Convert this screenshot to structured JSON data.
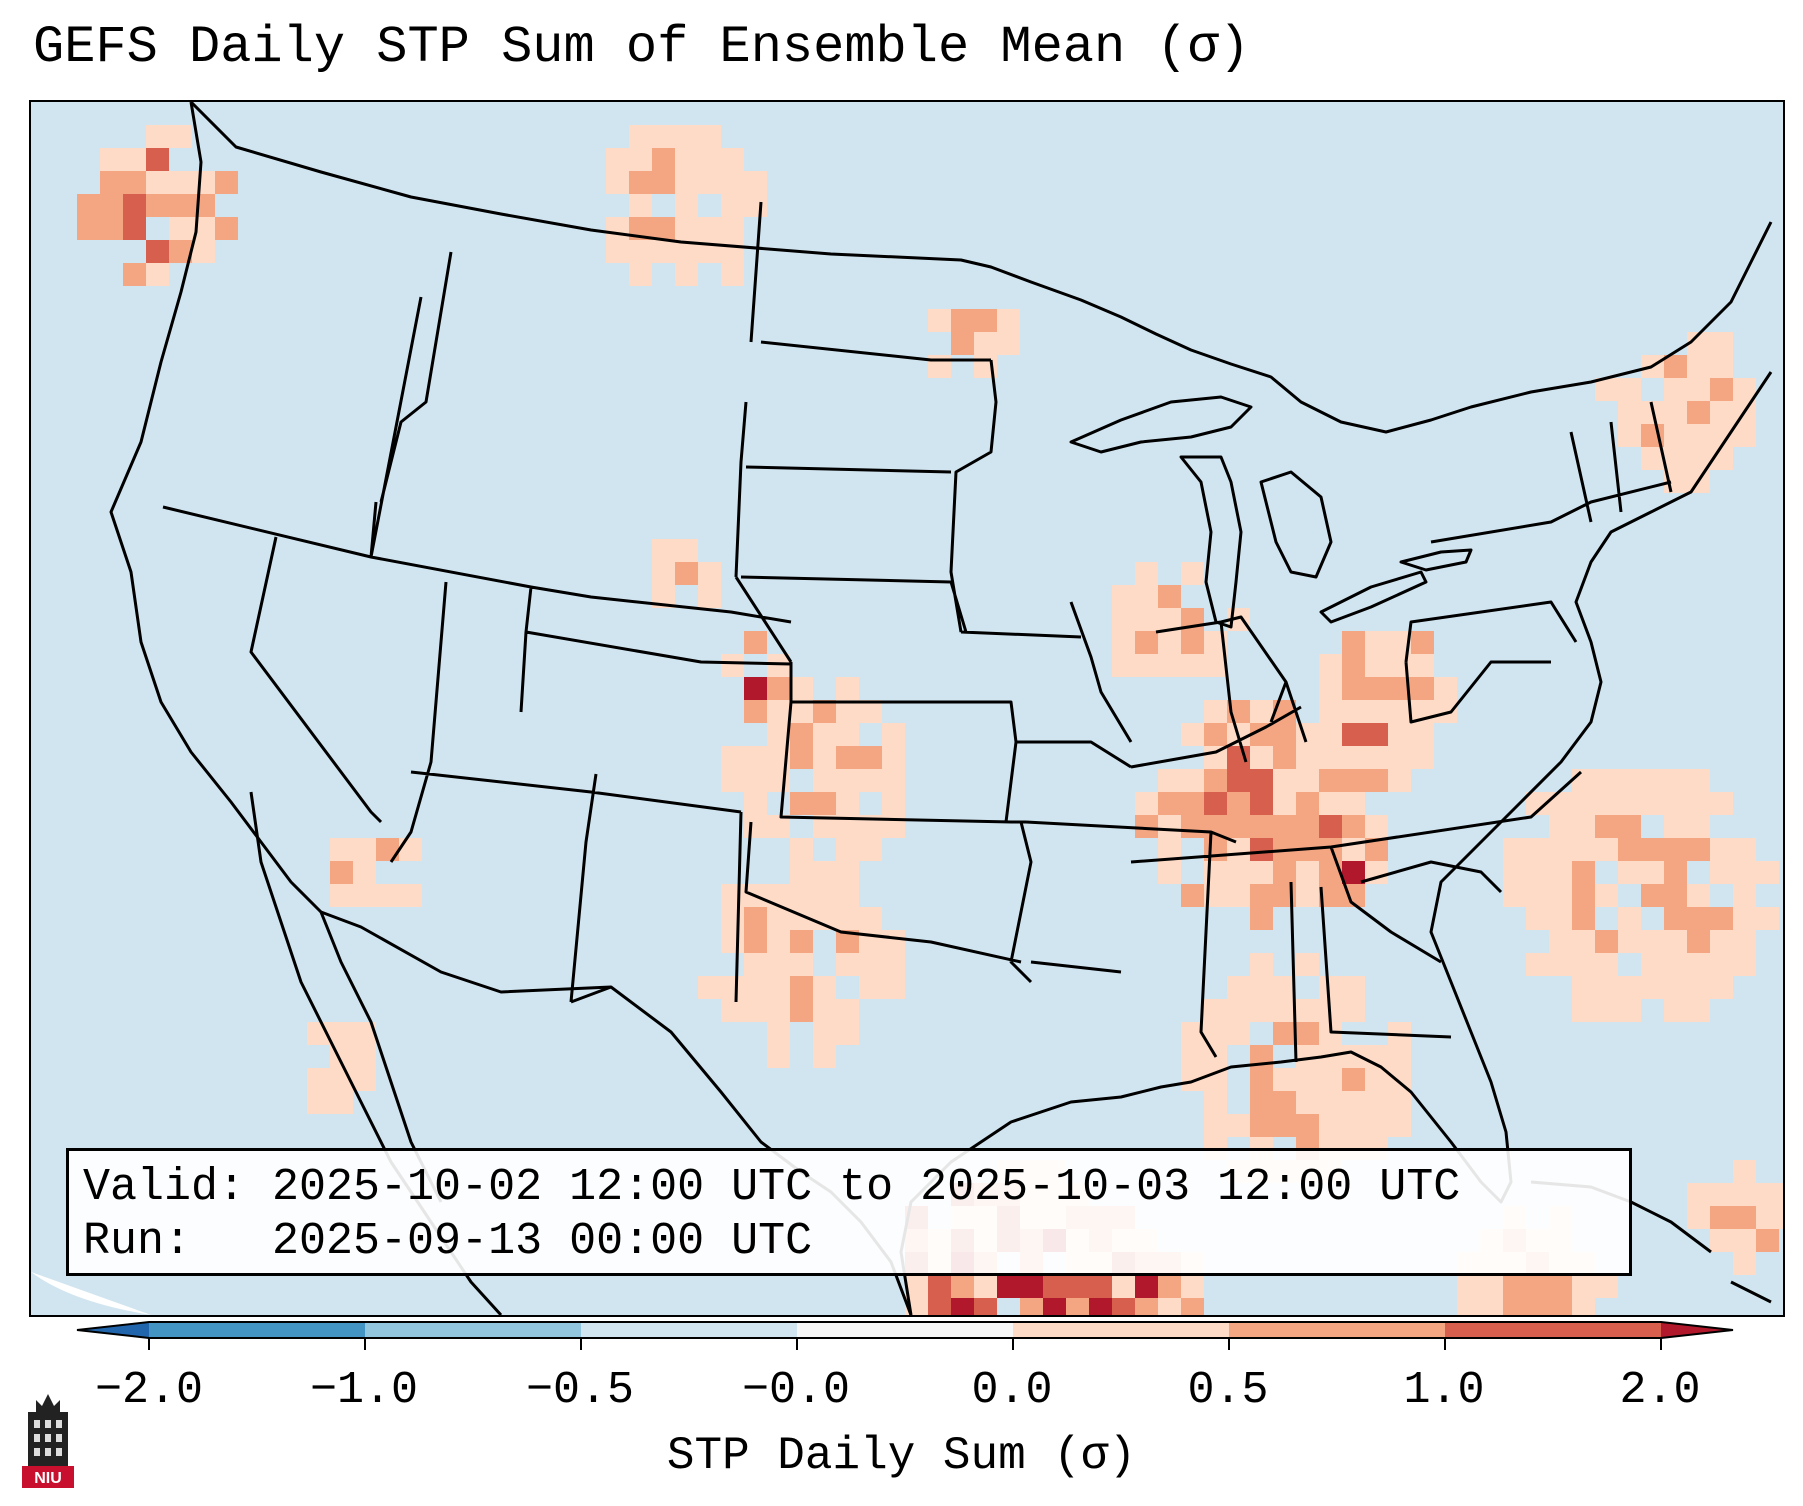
{
  "title": "GEFS Daily STP Sum of Ensemble Mean (σ)",
  "info": {
    "valid": "Valid: 2025-10-02 12:00 UTC to 2025-10-03 12:00 UTC",
    "run": "Run:   2025-09-13 00:00 UTC"
  },
  "colorbar": {
    "label": "STP Daily Sum (σ)",
    "ticks": [
      "−2.0",
      "−1.0",
      "−0.5",
      "−0.0",
      "0.0",
      "0.5",
      "1.0",
      "2.0"
    ],
    "colors": [
      "#4393c3",
      "#92c5de",
      "#d1e5f0",
      "#f7f7f7",
      "#fddbc7",
      "#f4a582",
      "#d6604d"
    ],
    "under_color": "#2166ac",
    "over_color": "#b2182b"
  },
  "map": {
    "background_color": "#d1e5f0",
    "projection": "conic",
    "region": "Continental United States"
  },
  "logo": {
    "text": "NIU",
    "icon": "university-tower-icon"
  }
}
